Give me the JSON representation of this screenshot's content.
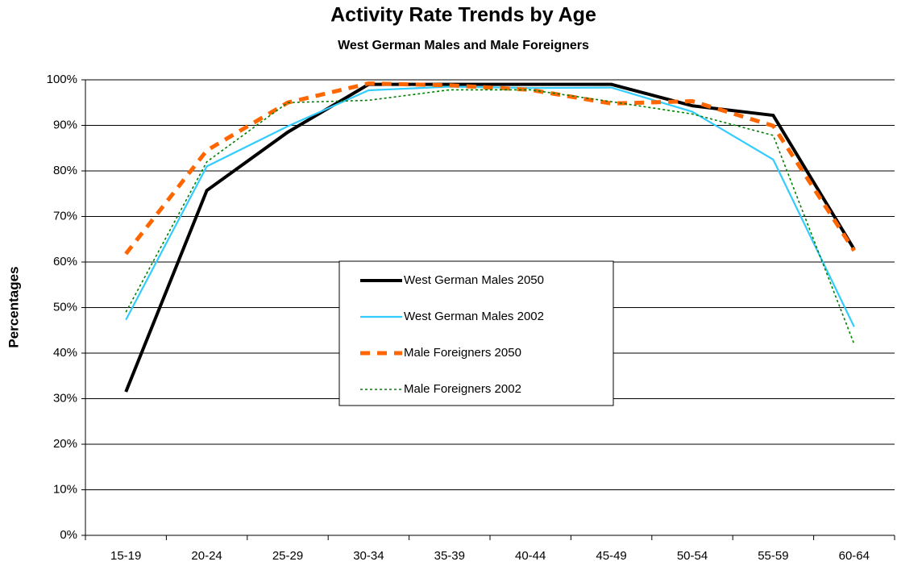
{
  "chart_data": {
    "type": "line",
    "title": "Activity Rate Trends by Age",
    "subtitle": "West German Males and Male Foreigners",
    "y_label": "Percentages",
    "categories": [
      "15-19",
      "20-24",
      "25-29",
      "30-34",
      "35-39",
      "40-44",
      "45-49",
      "50-54",
      "55-59",
      "60-64"
    ],
    "series": [
      {
        "name": "West German Males 2050",
        "color": "#000000",
        "style": "solid",
        "values": [
          31.5,
          75.7,
          88.5,
          99,
          99,
          99,
          99,
          94.3,
          92.2,
          62.8
        ]
      },
      {
        "name": "West German Males 2002",
        "color": "#33ccff",
        "style": "thin",
        "values": [
          47.3,
          81,
          89.8,
          97.7,
          98.5,
          98.2,
          98.3,
          93,
          82.5,
          45.8
        ]
      },
      {
        "name": "Male Foreigners 2050",
        "color": "#ff6600",
        "style": "dashed",
        "values": [
          61.8,
          84.5,
          95,
          99.2,
          98.8,
          97.8,
          94.8,
          95.3,
          89.9,
          62.5
        ]
      },
      {
        "name": "Male Foreigners 2002",
        "color": "#008000",
        "style": "dotted",
        "values": [
          49,
          82,
          95,
          95.5,
          97.8,
          97.8,
          95.2,
          92.5,
          87.8,
          42
        ]
      }
    ],
    "ylim": [
      0,
      100
    ],
    "yticks": [
      {
        "value": 0,
        "label": "0%"
      },
      {
        "value": 10,
        "label": "10%"
      },
      {
        "value": 20,
        "label": "20%"
      },
      {
        "value": 30,
        "label": "30%"
      },
      {
        "value": 40,
        "label": "40%"
      },
      {
        "value": 50,
        "label": "50%"
      },
      {
        "value": 60,
        "label": "60%"
      },
      {
        "value": 70,
        "label": "70%"
      },
      {
        "value": 80,
        "label": "80%"
      },
      {
        "value": 90,
        "label": "90%"
      },
      {
        "value": 100,
        "label": "100%"
      }
    ],
    "grid": true
  }
}
